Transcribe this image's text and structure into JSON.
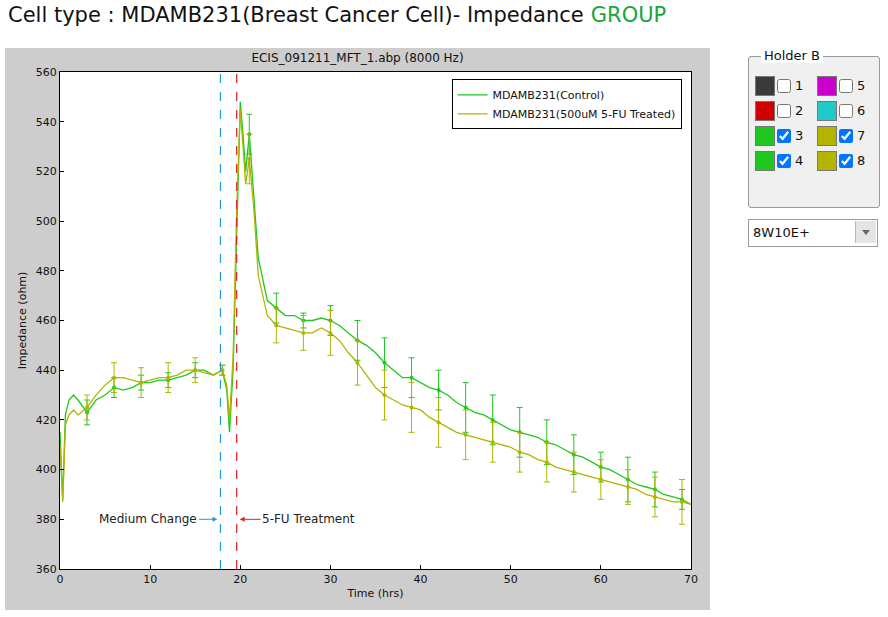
{
  "header": {
    "text": "Cell type : MDAMB231(Breast Cancer Cell)- Impedance",
    "highlight": "GROUP"
  },
  "panel": {
    "title": "Holder B",
    "wells": [
      {
        "label": "1",
        "color": "#3a3a3a",
        "checked": false
      },
      {
        "label": "2",
        "color": "#d00000",
        "checked": false
      },
      {
        "label": "3",
        "color": "#1ec81e",
        "checked": true
      },
      {
        "label": "4",
        "color": "#1ec81e",
        "checked": true
      },
      {
        "label": "5",
        "color": "#cc00cc",
        "checked": false
      },
      {
        "label": "6",
        "color": "#20c8c8",
        "checked": false
      },
      {
        "label": "7",
        "color": "#b3b300",
        "checked": true
      },
      {
        "label": "8",
        "color": "#b3b300",
        "checked": true
      }
    ],
    "select": "8W10E+"
  },
  "chart_data": {
    "type": "line",
    "title": "ECIS_091211_MFT_1.abp (8000 Hz)",
    "x_label": "Time (hrs)",
    "y_label": "Impedance (ohm)",
    "x": [
      0,
      0.3,
      0.6,
      1,
      1.5,
      2,
      3,
      4,
      5,
      6,
      7,
      8,
      9,
      10,
      11,
      12,
      13,
      14,
      15,
      16,
      17,
      18,
      18.5,
      18.8,
      19.2,
      19.6,
      20,
      20.3,
      20.6,
      21,
      21.5,
      22,
      23,
      24,
      25,
      26,
      27,
      28,
      29,
      30,
      31,
      32,
      33,
      34,
      35,
      36,
      37,
      38,
      39,
      40,
      41,
      42,
      43,
      44,
      45,
      46,
      47,
      48,
      49,
      50,
      51,
      52,
      53,
      54,
      55,
      56,
      57,
      58,
      59,
      60,
      61,
      62,
      63,
      64,
      65,
      66,
      67,
      68,
      69,
      70
    ],
    "series": [
      {
        "name": "MDAMB231(Control)",
        "color": "#1ec81e",
        "values": [
          415,
          388,
          422,
          428,
          430,
          428,
          423,
          428,
          430,
          433,
          432,
          433,
          435,
          435,
          436,
          436,
          437,
          438,
          440,
          440,
          438,
          440,
          432,
          415,
          440,
          500,
          548,
          535,
          520,
          535,
          510,
          485,
          468,
          465,
          462,
          462,
          460,
          460,
          461,
          460,
          458,
          455,
          452,
          450,
          447,
          443,
          440,
          437,
          437,
          435,
          433,
          432,
          430,
          427,
          425,
          423,
          422,
          420,
          418,
          416,
          415,
          414,
          413,
          411,
          410,
          408,
          406,
          405,
          403,
          401,
          400,
          398,
          396,
          394,
          393,
          392,
          390,
          389,
          388,
          386
        ],
        "error": [
          5,
          4,
          3,
          3,
          3,
          2,
          8,
          6,
          3,
          6,
          8,
          10,
          8,
          8,
          10,
          10,
          10,
          9,
          8,
          6,
          9,
          7,
          4
        ]
      },
      {
        "name": "MDAMB231(500uM 5-FU Treated)",
        "color": "#b3b300",
        "values": [
          410,
          387,
          418,
          422,
          424,
          422,
          425,
          430,
          434,
          437,
          437,
          436,
          435,
          436,
          437,
          437,
          438,
          440,
          440,
          439,
          438,
          440,
          434,
          420,
          445,
          505,
          545,
          530,
          515,
          525,
          505,
          478,
          462,
          458,
          457,
          456,
          455,
          455,
          457,
          455,
          452,
          447,
          443,
          438,
          433,
          430,
          428,
          426,
          425,
          424,
          421,
          419,
          417,
          415,
          414,
          413,
          412,
          411,
          410,
          409,
          407,
          406,
          404,
          403,
          401,
          400,
          399,
          398,
          397,
          396,
          395,
          394,
          393,
          392,
          390,
          389,
          388,
          387,
          387,
          386
        ],
        "error": [
          5,
          6,
          6,
          6,
          5,
          2,
          10,
          7,
          7,
          9,
          9,
          10,
          10,
          10,
          10,
          8,
          8,
          8,
          8,
          8,
          7,
          8,
          9
        ]
      }
    ],
    "error_x": [
      3,
      6,
      9,
      12,
      15,
      18,
      21,
      24,
      27,
      30,
      33,
      36,
      39,
      42,
      45,
      48,
      51,
      54,
      57,
      60,
      63,
      66,
      69
    ],
    "annotations": [
      {
        "text": "Medium Change",
        "x": 17.8,
        "color": "#1e9be0",
        "line_style": "dash"
      },
      {
        "text": "5-FU Treatment",
        "x": 19.6,
        "color": "#e02020",
        "line_style": "dash"
      }
    ],
    "xlim": [
      0,
      70
    ],
    "xticks": [
      0,
      10,
      20,
      30,
      40,
      50,
      60,
      70
    ],
    "ylim": [
      360,
      560
    ],
    "yticks": [
      360,
      380,
      400,
      420,
      440,
      460,
      480,
      500,
      520,
      540,
      560
    ],
    "grid": false,
    "legend": "upper right",
    "marker": "circle"
  }
}
